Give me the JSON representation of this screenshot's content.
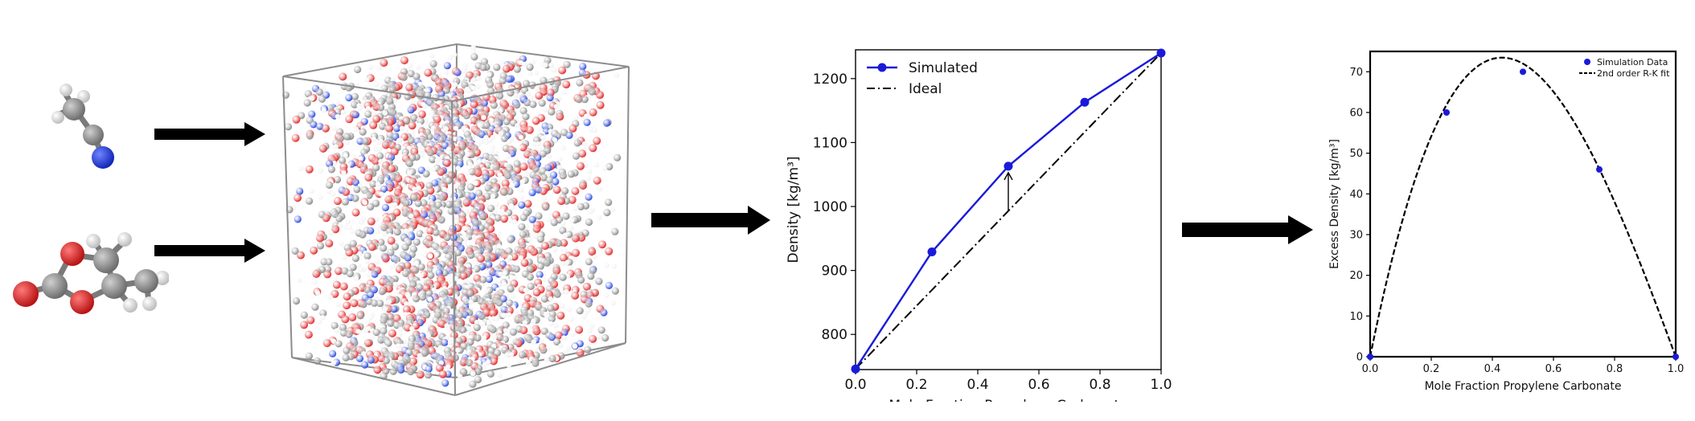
{
  "molecules": [
    {
      "name": "acetonitrile"
    },
    {
      "name": "propylene-carbonate"
    }
  ],
  "atom_colors": {
    "carbon": "#8a8a8a",
    "hydrogen": "#f2f2f2",
    "oxygen": "#e02a2a",
    "nitrogen": "#2848e0"
  },
  "chart_data": [
    {
      "type": "line",
      "xlabel": "Mole Fraction Propylene Carbonate",
      "ylabel": "Density [kg/m³]",
      "xlim": [
        0,
        1
      ],
      "ylim": [
        745,
        1245
      ],
      "x_ticks": [
        "0.0",
        "0.2",
        "0.4",
        "0.6",
        "0.8",
        "1.0"
      ],
      "y_ticks": [
        "800",
        "900",
        "1000",
        "1100",
        "1200"
      ],
      "legend_position": "top-left",
      "series": [
        {
          "name": "Simulated",
          "style": "solid-markers",
          "color": "#1a1ad9",
          "x": [
            0.0,
            0.25,
            0.5,
            0.75,
            1.0
          ],
          "y": [
            746,
            929,
            1063,
            1163,
            1240
          ]
        },
        {
          "name": "Ideal",
          "style": "dash-dot",
          "color": "#000000",
          "x": [
            0.0,
            1.0
          ],
          "y": [
            746,
            1240
          ]
        }
      ],
      "annotation": {
        "type": "arrow",
        "x": 0.5,
        "from_y": 993,
        "to_y": 1063
      }
    },
    {
      "type": "line",
      "xlabel": "Mole Fraction Propylene Carbonate",
      "ylabel": "Excess Density [kg/m³]",
      "xlim": [
        0,
        1
      ],
      "ylim": [
        0,
        75
      ],
      "x_ticks": [
        "0.0",
        "0.2",
        "0.4",
        "0.6",
        "0.8",
        "1.0"
      ],
      "y_ticks": [
        "0",
        "10",
        "20",
        "30",
        "40",
        "50",
        "60",
        "70"
      ],
      "legend_position": "top-right",
      "series": [
        {
          "name": "Simulation Data",
          "style": "markers",
          "color": "#1a1ad9",
          "x": [
            0.0,
            0.25,
            0.5,
            0.75,
            1.0
          ],
          "y": [
            0,
            60,
            70,
            46,
            0
          ]
        },
        {
          "name": "2nd order R-K fit",
          "style": "dashed",
          "color": "#000000",
          "rk_coefficients": [
            288,
            -84
          ]
        }
      ]
    }
  ]
}
